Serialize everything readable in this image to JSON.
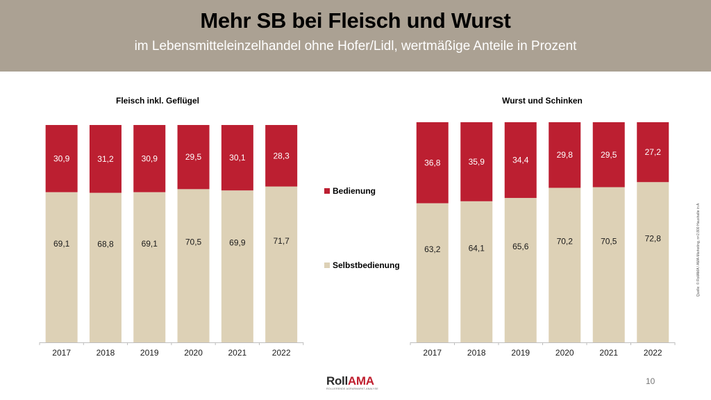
{
  "header": {
    "title": "Mehr SB bei Fleisch und Wurst",
    "subtitle": "im Lebensmitteleinzelhandel ohne Hofer/Lidl, wertmäßige Anteile in Prozent"
  },
  "colors": {
    "header_bg": "#aba193",
    "bedienung": "#bc1f31",
    "selbstbedienung": "#ddd1b6"
  },
  "legend": {
    "items": [
      {
        "label": "Bedienung",
        "color": "#bc1f31"
      },
      {
        "label": "Selbstbedienung",
        "color": "#ddd1b6"
      }
    ],
    "placement": "center between charts"
  },
  "chart_data": [
    {
      "type": "bar",
      "stacked": true,
      "percent_stacked": true,
      "title": "Fleisch inkl. Geflügel",
      "categories": [
        "2017",
        "2018",
        "2019",
        "2020",
        "2021",
        "2022"
      ],
      "series": [
        {
          "name": "Selbstbedienung",
          "values": [
            69.1,
            68.8,
            69.1,
            70.5,
            69.9,
            71.7
          ],
          "labels": [
            "69,1",
            "68,8",
            "69,1",
            "70,5",
            "69,9",
            "71,7"
          ]
        },
        {
          "name": "Bedienung",
          "values": [
            30.9,
            31.2,
            30.9,
            29.5,
            30.1,
            28.3
          ],
          "labels": [
            "30,9",
            "31,2",
            "30,9",
            "29,5",
            "30,1",
            "28,3"
          ]
        }
      ],
      "xlabel": "",
      "ylabel": "",
      "ylim": [
        0,
        100
      ],
      "grid": false
    },
    {
      "type": "bar",
      "stacked": true,
      "percent_stacked": true,
      "title": "Wurst und Schinken",
      "categories": [
        "2017",
        "2018",
        "2019",
        "2020",
        "2021",
        "2022"
      ],
      "series": [
        {
          "name": "Selbstbedienung",
          "values": [
            63.2,
            64.1,
            65.6,
            70.2,
            70.5,
            72.8
          ],
          "labels": [
            "63,2",
            "64,1",
            "65,6",
            "70,2",
            "70,5",
            "72,8"
          ]
        },
        {
          "name": "Bedienung",
          "values": [
            36.8,
            35.9,
            34.4,
            29.8,
            29.5,
            27.2
          ],
          "labels": [
            "36,8",
            "35,9",
            "34,4",
            "29,8",
            "29,5",
            "27,2"
          ]
        }
      ],
      "xlabel": "",
      "ylabel": "",
      "ylim": [
        0,
        100
      ],
      "grid": false
    }
  ],
  "source_note": "Quelle: © RollAMA / AMA-Marketing, n=2.800 Haushalte in A",
  "logo": {
    "part1": "Roll",
    "part2": "AMA",
    "tagline": "ROLLIERENDE AGRARMARKT-ANALYSE"
  },
  "page_number": "10"
}
